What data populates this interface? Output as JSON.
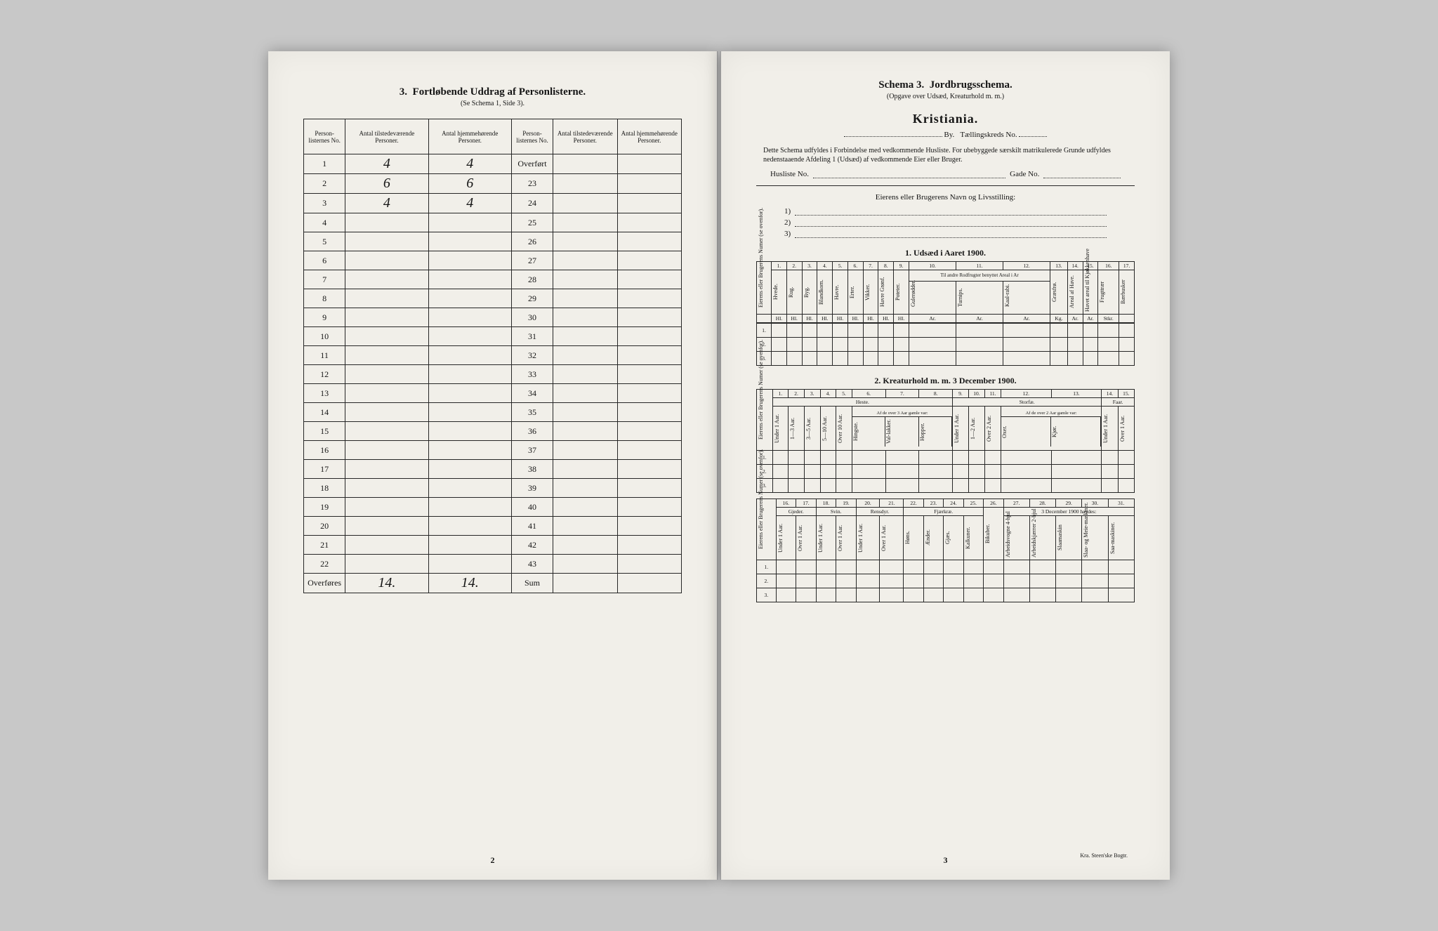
{
  "left": {
    "title_num": "3.",
    "title": "Fortløbende Uddrag af Personlisterne.",
    "subtitle": "(Se Schema 1, Side 3).",
    "headers": [
      "Person-listernes No.",
      "Antal tilstedeværende Personer.",
      "Antal hjemmehørende Personer.",
      "Person-listernes No.",
      "Antal tilstedeværende Personer.",
      "Antal hjemmehørende Personer."
    ],
    "rows_left": [
      {
        "no": "1",
        "a": "4",
        "b": "4"
      },
      {
        "no": "2",
        "a": "6",
        "b": "6"
      },
      {
        "no": "3",
        "a": "4",
        "b": "4"
      },
      {
        "no": "4",
        "a": "",
        "b": ""
      },
      {
        "no": "5",
        "a": "",
        "b": ""
      },
      {
        "no": "6",
        "a": "",
        "b": ""
      },
      {
        "no": "7",
        "a": "",
        "b": ""
      },
      {
        "no": "8",
        "a": "",
        "b": ""
      },
      {
        "no": "9",
        "a": "",
        "b": ""
      },
      {
        "no": "10",
        "a": "",
        "b": ""
      },
      {
        "no": "11",
        "a": "",
        "b": ""
      },
      {
        "no": "12",
        "a": "",
        "b": ""
      },
      {
        "no": "13",
        "a": "",
        "b": ""
      },
      {
        "no": "14",
        "a": "",
        "b": ""
      },
      {
        "no": "15",
        "a": "",
        "b": ""
      },
      {
        "no": "16",
        "a": "",
        "b": ""
      },
      {
        "no": "17",
        "a": "",
        "b": ""
      },
      {
        "no": "18",
        "a": "",
        "b": ""
      },
      {
        "no": "19",
        "a": "",
        "b": ""
      },
      {
        "no": "20",
        "a": "",
        "b": ""
      },
      {
        "no": "21",
        "a": "",
        "b": ""
      },
      {
        "no": "22",
        "a": "",
        "b": ""
      }
    ],
    "overfores": "Overføres",
    "overfort": "Overført",
    "sum": "Sum",
    "rows_right": [
      "23",
      "24",
      "25",
      "26",
      "27",
      "28",
      "29",
      "30",
      "31",
      "32",
      "33",
      "34",
      "35",
      "36",
      "37",
      "38",
      "39",
      "40",
      "41",
      "42",
      "43"
    ],
    "total_a": "14.",
    "total_b": "14.",
    "pagenum": "2"
  },
  "right": {
    "schema_label": "Schema 3.",
    "schema_title": "Jordbrugsschema.",
    "subtitle": "(Opgave over Udsæd, Kreaturhold m. m.)",
    "city": "Kristiania.",
    "byline_by": "By.",
    "byline_field": "Tællingskreds No.",
    "para": "Dette Schema udfyldes i Forbindelse med vedkommende Husliste. For ubebyggede særskilt matrikulerede Grunde udfyldes nedenstaaende Afdeling 1 (Udsæd) af vedkommende Eier eller Bruger.",
    "husliste": "Husliste No.",
    "gade": "Gade No.",
    "owner_line": "Eierens eller Brugerens Navn og Livsstilling:",
    "nums": [
      "1)",
      "2)",
      "3)"
    ],
    "sec1": "1. Udsæd i Aaret 1900.",
    "sec2": "2. Kreaturhold m. m. 3 December 1900.",
    "t1_sidecol": "Eierens eller Brugerens Numer (se ovenfor).",
    "t1_cols_num": [
      "1.",
      "2.",
      "3.",
      "4.",
      "5.",
      "6.",
      "7.",
      "8.",
      "9.",
      "10.",
      "11.",
      "12.",
      "13.",
      "14.",
      "15.",
      "16.",
      "17."
    ],
    "t1_cols": [
      "Hvede.",
      "Rug.",
      "Byg.",
      "Blandkorn.",
      "Havre.",
      "Erter.",
      "Vikker.",
      "Havre Grønf.",
      "Poteter.",
      "Gulerødder.",
      "Turnips.",
      "Kaal-rabi.",
      "Græsfrø.",
      "Areal af Have.",
      "Havet areal til Kjøkkenhave",
      "Frugttrær",
      "Bærbusker"
    ],
    "t1_group": "Til andre Rodfrugter benyttet Areal i Ar",
    "t1_units": [
      "Hl.",
      "Hl.",
      "Hl.",
      "Hl.",
      "Hl.",
      "Hl.",
      "Hl.",
      "Hl.",
      "Hl.",
      "Ar.",
      "Ar.",
      "Ar.",
      "Kg.",
      "Ar.",
      "Ar.",
      "Stkr."
    ],
    "t1_rownums": [
      "1.",
      "2.",
      "3."
    ],
    "t2_cols_num": [
      "1.",
      "2.",
      "3.",
      "4.",
      "5.",
      "6.",
      "7.",
      "8.",
      "9.",
      "10.",
      "11.",
      "12.",
      "13.",
      "14.",
      "15."
    ],
    "t2_heste": "Heste.",
    "t2_storfae": "Storfæ.",
    "t2_faar": "Faar.",
    "t2_cols": [
      "Under 1 Aar.",
      "1—3 Aar.",
      "3—5 Aar.",
      "5—10 Aar.",
      "Over 10 Aar.",
      "Hingste.",
      "Val-lakker.",
      "Hopper.",
      "Under 1 Aar.",
      "1—2 Aar.",
      "Over 2 Aar.",
      "Oxer.",
      "Kjør.",
      "Under 1 Aar.",
      "Over 1 Aar."
    ],
    "t2_sub1": "Af de over 3 Aar gamle var:",
    "t2_sub2": "Af de over 2 Aar gamle var:",
    "t3_cols_num": [
      "16.",
      "17.",
      "18.",
      "19.",
      "20.",
      "21.",
      "22.",
      "23.",
      "24.",
      "25.",
      "26.",
      "27.",
      "28.",
      "29.",
      "30.",
      "31."
    ],
    "t3_gjeder": "Gjeder.",
    "t3_svin": "Svin.",
    "t3_rensdyr": "Rensdyr.",
    "t3_fjaerkrae": "Fjærkræ.",
    "t3_dec": "3 December 1900 havdes:",
    "t3_cols": [
      "Under 1 Aar.",
      "Over 1 Aar.",
      "Under 1 Aar.",
      "Over 1 Aar.",
      "Under 1 Aar.",
      "Over 1 Aar.",
      "Høns.",
      "Ænder.",
      "Gjæs.",
      "Kalkuner.",
      "Bikuber.",
      "Arbeidsvogne 4-hjul",
      "Arbeidskjærrer 2-hjul",
      "Slaamaskin",
      "Slaa- og Meie-maskiner.",
      "Saa-maskiner."
    ],
    "pagenum": "3",
    "footer": "Kra. Steen'ske Bogtr."
  },
  "colors": {
    "page_bg": "#eceae4",
    "doc_bg": "#c8c8c8",
    "ink": "#1a1a1a",
    "rule": "#2a2a2a"
  }
}
